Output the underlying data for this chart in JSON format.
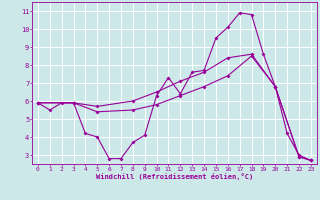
{
  "xlabel": "Windchill (Refroidissement éolien,°C)",
  "bg_color": "#cce8e8",
  "grid_color": "#ffffff",
  "line_color": "#990099",
  "xlim": [
    -0.5,
    23.5
  ],
  "ylim": [
    2.5,
    11.5
  ],
  "yticks": [
    3,
    4,
    5,
    6,
    7,
    8,
    9,
    10,
    11
  ],
  "xticks": [
    0,
    1,
    2,
    3,
    4,
    5,
    6,
    7,
    8,
    9,
    10,
    11,
    12,
    13,
    14,
    15,
    16,
    17,
    18,
    19,
    20,
    21,
    22,
    23
  ],
  "lines": [
    {
      "x": [
        0,
        1,
        2,
        3,
        4,
        5,
        6,
        7,
        8,
        9,
        10,
        11,
        12,
        13,
        14,
        15,
        16,
        17,
        18,
        19,
        20,
        21,
        22,
        23
      ],
      "y": [
        5.9,
        5.5,
        5.9,
        5.9,
        4.2,
        4.0,
        2.8,
        2.8,
        3.7,
        4.1,
        6.3,
        7.3,
        6.4,
        7.6,
        7.7,
        9.5,
        10.1,
        10.9,
        10.8,
        8.6,
        6.8,
        4.2,
        3.0,
        2.7
      ]
    },
    {
      "x": [
        0,
        3,
        5,
        8,
        10,
        12,
        14,
        16,
        18,
        20,
        22,
        23
      ],
      "y": [
        5.9,
        5.9,
        5.4,
        5.5,
        5.8,
        6.3,
        6.8,
        7.4,
        8.5,
        6.8,
        2.9,
        2.7
      ]
    },
    {
      "x": [
        0,
        3,
        5,
        8,
        10,
        12,
        14,
        16,
        18,
        20,
        22,
        23
      ],
      "y": [
        5.9,
        5.9,
        5.7,
        6.0,
        6.5,
        7.1,
        7.6,
        8.4,
        8.6,
        6.8,
        2.9,
        2.7
      ]
    }
  ]
}
